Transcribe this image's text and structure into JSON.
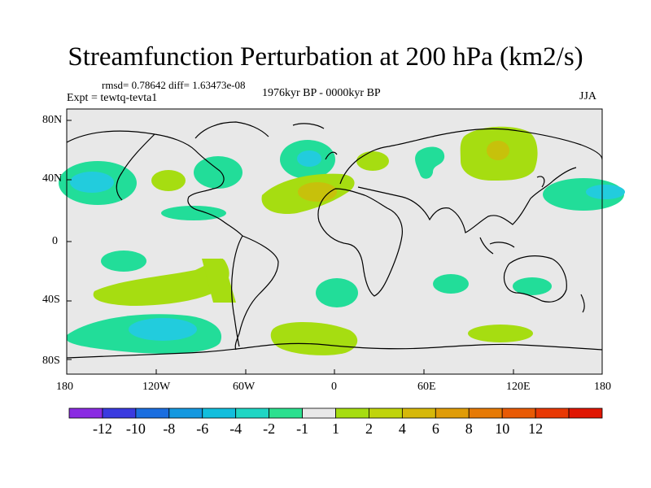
{
  "title": "Streamfunction Perturbation at 200 hPa (km2/s)",
  "stats": "rmsd= 0.78642 diff= 1.63473e-08",
  "experiment": "Expt = tewtq-tevta1",
  "period": "1976kyr BP - 0000kyr BP",
  "season": "JJA",
  "colors": {
    "background": "#e8e8e8",
    "coastline": "#000000",
    "neg1": "#22dd99",
    "neg2": "#22ccdd",
    "pos1": "#a6dd11",
    "pos2": "#c7c10b"
  },
  "map": {
    "lat_ticks": [
      "80N",
      "40N",
      "0",
      "40S",
      "80S"
    ],
    "lon_ticks": [
      "180",
      "120W",
      "60W",
      "0",
      "60E",
      "120E",
      "180"
    ]
  },
  "colorbar": {
    "colors": [
      "#8a2be2",
      "#3a3ae0",
      "#1b6ee0",
      "#1598e0",
      "#12bedd",
      "#1fd6c4",
      "#2ce08f",
      "#e8e8e8",
      "#a6dd11",
      "#c0d40c",
      "#d6b80a",
      "#e09c08",
      "#e67a06",
      "#e85a05",
      "#e83804",
      "#e01602"
    ],
    "labels": [
      "-12",
      "-10",
      "-8",
      "-6",
      "-4",
      "-2",
      "-1",
      "1",
      "2",
      "4",
      "6",
      "8",
      "10",
      "12"
    ]
  }
}
